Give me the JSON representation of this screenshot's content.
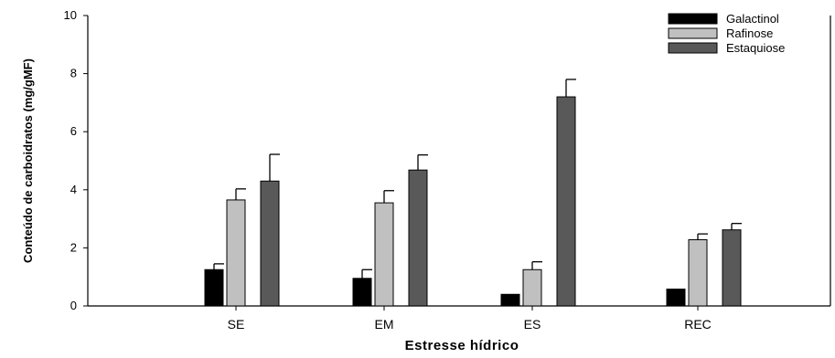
{
  "chart_data": {
    "type": "bar",
    "title": "",
    "xlabel": "Estresse hídrico",
    "ylabel": "Conteúdo de carboidratos (mg/gMF)",
    "categories": [
      "SE",
      "EM",
      "ES",
      "REC"
    ],
    "ylim": [
      0,
      10
    ],
    "yticks": [
      0,
      2,
      4,
      6,
      8,
      10
    ],
    "grid": false,
    "legend_position": "top-right",
    "series": [
      {
        "name": "Galactinol",
        "color": "#000000",
        "values": [
          1.25,
          0.95,
          0.4,
          0.58
        ],
        "errors": [
          0.2,
          0.3,
          0.0,
          0.0
        ]
      },
      {
        "name": "Rafinose",
        "color": "#c0c0c0",
        "values": [
          3.65,
          3.55,
          1.25,
          2.28
        ],
        "errors": [
          0.38,
          0.42,
          0.27,
          0.2
        ]
      },
      {
        "name": "Estaquiose",
        "color": "#595959",
        "values": [
          4.3,
          4.68,
          7.2,
          2.62
        ],
        "errors": [
          0.92,
          0.52,
          0.6,
          0.22
        ]
      }
    ]
  }
}
